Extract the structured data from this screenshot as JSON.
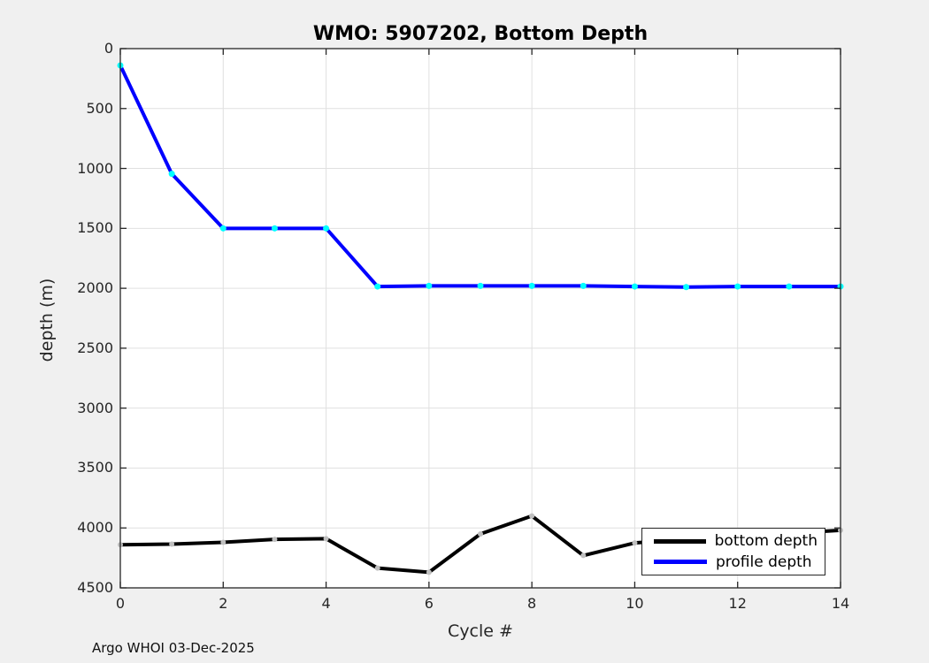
{
  "figure": {
    "title": "WMO: 5907202, Bottom Depth",
    "footer": "Argo WHOI 03-Dec-2025"
  },
  "chart_data": {
    "type": "line",
    "title": "WMO: 5907202, Bottom Depth",
    "xlabel": "Cycle #",
    "ylabel": "depth (m)",
    "x": [
      0,
      1,
      2,
      3,
      4,
      5,
      6,
      7,
      8,
      9,
      10,
      11,
      12,
      13,
      14
    ],
    "series": [
      {
        "name": "bottom depth",
        "color": "#000000",
        "marker_color": "#bfbfbf",
        "values": [
          4140,
          4135,
          4120,
          4095,
          4090,
          4335,
          4370,
          4050,
          3900,
          4230,
          4125,
          4095,
          4070,
          4045,
          4020
        ]
      },
      {
        "name": "profile depth",
        "color": "#0000ff",
        "marker_color": "#00ffff",
        "values": [
          140,
          1045,
          1500,
          1500,
          1500,
          1985,
          1980,
          1980,
          1980,
          1980,
          1985,
          1990,
          1985,
          1985,
          1985
        ]
      }
    ],
    "xlim": [
      0,
      14
    ],
    "ylim": [
      0,
      4500
    ],
    "y_inverted": true,
    "xticks": [
      0,
      2,
      4,
      6,
      8,
      10,
      12,
      14
    ],
    "yticks": [
      0,
      500,
      1000,
      1500,
      2000,
      2500,
      3000,
      3500,
      4000,
      4500
    ],
    "grid": true,
    "legend_position": "bottom-right"
  },
  "legend": {
    "items": [
      {
        "label": "bottom depth",
        "color": "#000000"
      },
      {
        "label": "profile depth",
        "color": "#0000ff"
      }
    ]
  },
  "colors": {
    "figure_bg": "#f0f0f0",
    "plot_bg": "#ffffff",
    "grid": "#e0e0e0",
    "axis": "#262626"
  }
}
